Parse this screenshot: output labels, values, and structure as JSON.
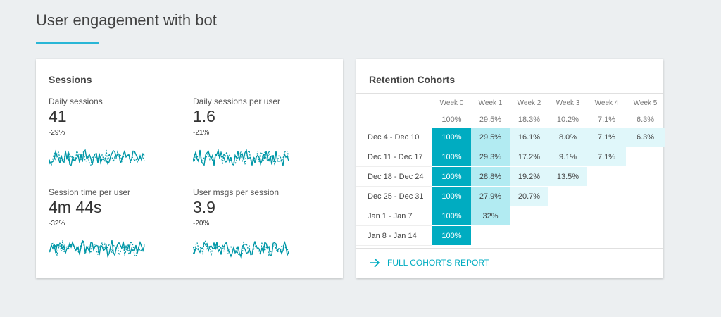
{
  "header": {
    "title": "User engagement with bot"
  },
  "sessions": {
    "title": "Sessions",
    "metrics": [
      {
        "label": "Daily sessions",
        "value": "41",
        "change": "-29%"
      },
      {
        "label": "Daily sessions per user",
        "value": "1.6",
        "change": "-21%"
      },
      {
        "label": "Session time per user",
        "value": "4m 44s",
        "change": "-32%"
      },
      {
        "label": "User msgs per session",
        "value": "3.9",
        "change": "-20%"
      }
    ]
  },
  "retention": {
    "title": "Retention Cohorts",
    "columns": [
      "Week 0",
      "Week 1",
      "Week 2",
      "Week 3",
      "Week 4",
      "Week 5"
    ],
    "averages": [
      "100%",
      "29.5%",
      "18.3%",
      "10.2%",
      "7.1%",
      "6.3%"
    ],
    "rows": [
      {
        "label": "Dec 4 - Dec 10",
        "cells": [
          "100%",
          "29.5%",
          "16.1%",
          "8.0%",
          "7.1%",
          "6.3%"
        ]
      },
      {
        "label": "Dec 11 - Dec 17",
        "cells": [
          "100%",
          "29.3%",
          "17.2%",
          "9.1%",
          "7.1%"
        ]
      },
      {
        "label": "Dec 18 - Dec 24",
        "cells": [
          "100%",
          "28.8%",
          "19.2%",
          "13.5%"
        ]
      },
      {
        "label": "Dec 25 - Dec 31",
        "cells": [
          "100%",
          "27.9%",
          "20.7%"
        ]
      },
      {
        "label": "Jan 1 - Jan 7",
        "cells": [
          "100%",
          "32%"
        ]
      },
      {
        "label": "Jan 8 - Jan 14",
        "cells": [
          "100%"
        ]
      }
    ],
    "link": "FULL COHORTS REPORT"
  }
}
